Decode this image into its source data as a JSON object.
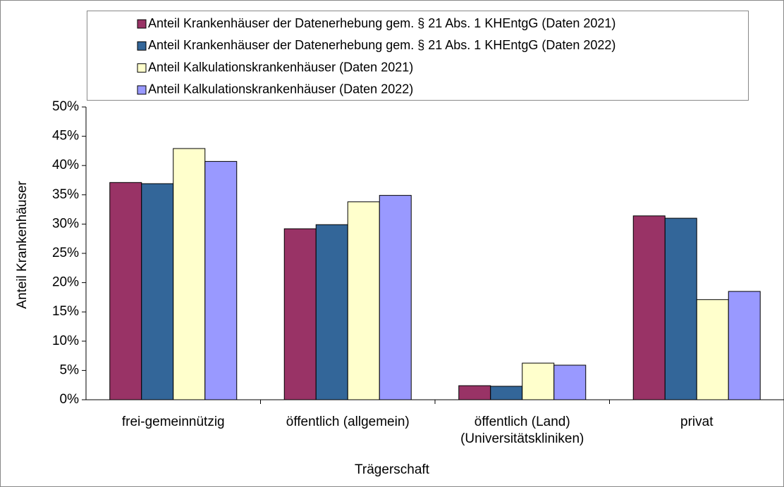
{
  "chart_data": {
    "type": "bar",
    "ylabel": "Anteil Krankenhäuser",
    "xlabel": "Trägerschaft",
    "categories": [
      "frei-gemeinnützig",
      "öffentlich (allgemein)",
      "öffentlich (Land)\n(Universitätskliniken)",
      "privat"
    ],
    "series": [
      {
        "name": "Anteil Krankenhäuser der Datenerhebung gem. § 21 Abs. 1 KHEntgG (Daten 2021)",
        "color": "#993366",
        "values": [
          37.1,
          29.2,
          2.4,
          31.4
        ]
      },
      {
        "name": "Anteil Krankenhäuser der Datenerhebung gem. § 21 Abs. 1 KHEntgG (Daten 2022)",
        "color": "#336699",
        "values": [
          36.9,
          29.9,
          2.3,
          31.0
        ]
      },
      {
        "name": "Anteil Kalkulationskrankenhäuser (Daten 2021)",
        "color": "#ffffcc",
        "values": [
          42.9,
          33.8,
          6.25,
          17.1
        ]
      },
      {
        "name": "Anteil Kalkulationskrankenhäuser (Daten 2022)",
        "color": "#9999ff",
        "values": [
          40.7,
          34.9,
          5.9,
          18.5
        ]
      }
    ],
    "ylim": [
      0,
      50
    ],
    "yticks": [
      {
        "value": 0,
        "label": "0%"
      },
      {
        "value": 5,
        "label": "5%"
      },
      {
        "value": 10,
        "label": "10%"
      },
      {
        "value": 15,
        "label": "15%"
      },
      {
        "value": 20,
        "label": "20%"
      },
      {
        "value": 25,
        "label": "25%"
      },
      {
        "value": 30,
        "label": "30%"
      },
      {
        "value": 35,
        "label": "35%"
      },
      {
        "value": 40,
        "label": "40%"
      },
      {
        "value": 45,
        "label": "45%"
      },
      {
        "value": 50,
        "label": "50%"
      }
    ],
    "legend": "top"
  }
}
